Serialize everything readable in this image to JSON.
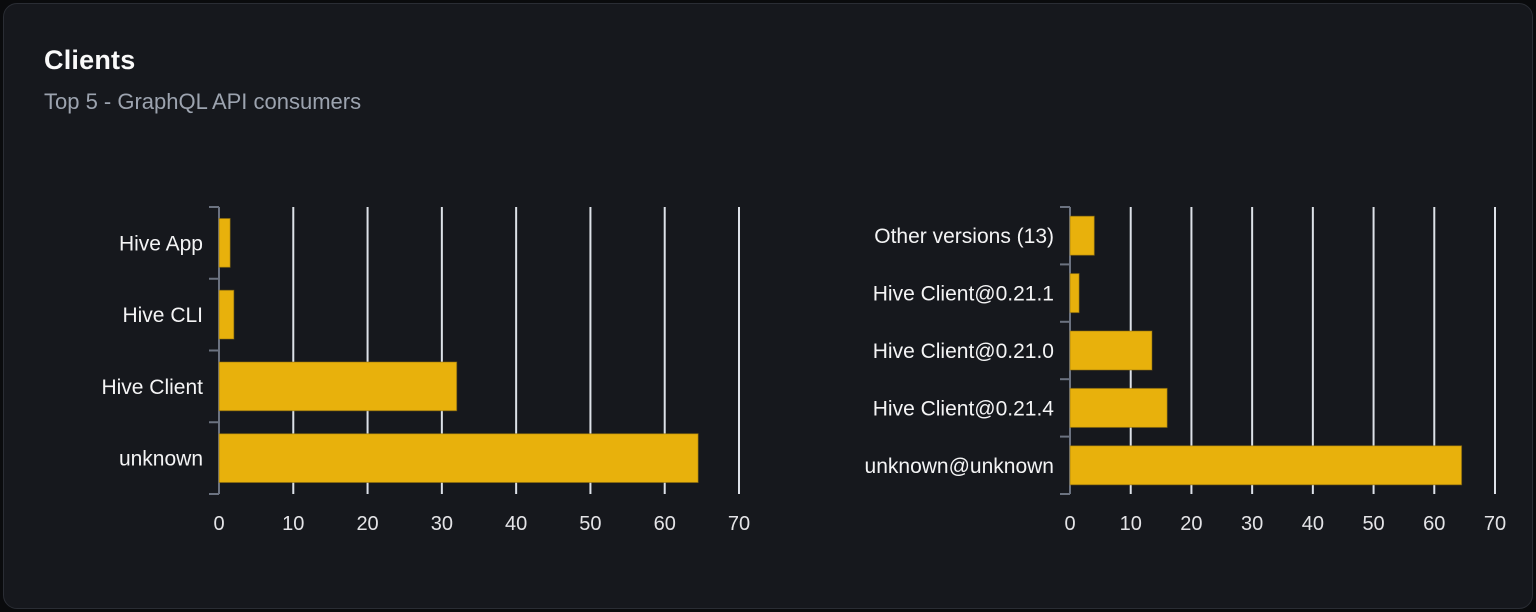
{
  "card": {
    "title": "Clients",
    "subtitle": "Top 5 - GraphQL API consumers"
  },
  "theme": {
    "page_bg": "#0a0b0d",
    "panel_bg": "#16181d",
    "border_color": "#2a2d34",
    "title_color": "#fafafa",
    "subtitle_color": "#9ca3af",
    "bar_color": "#e8b10c",
    "bar_edge_color": "#8a6c10",
    "grid_color": "#dde1e8",
    "axis_color": "#6b7280",
    "label_color": "#f4f4f5",
    "tick_label_color": "#e4e4e7"
  },
  "chart_data": [
    {
      "type": "bar",
      "orientation": "horizontal",
      "name": "clients-by-name",
      "categories": [
        "Hive App",
        "Hive CLI",
        "Hive Client",
        "unknown"
      ],
      "values": [
        1.5,
        2,
        32,
        64.5
      ],
      "xlim": [
        0,
        70
      ],
      "xticks": [
        0,
        10,
        20,
        30,
        40,
        50,
        60,
        70
      ],
      "grid": true,
      "legend_position": "none",
      "xlabel": "",
      "ylabel": ""
    },
    {
      "type": "bar",
      "orientation": "horizontal",
      "name": "clients-by-version",
      "categories": [
        "Other versions (13)",
        "Hive Client@0.21.1",
        "Hive Client@0.21.0",
        "Hive Client@0.21.4",
        "unknown@unknown"
      ],
      "values": [
        4,
        1.5,
        13.5,
        16,
        64.5
      ],
      "xlim": [
        0,
        70
      ],
      "xticks": [
        0,
        10,
        20,
        30,
        40,
        50,
        60,
        70
      ],
      "grid": true,
      "legend_position": "none",
      "xlabel": "",
      "ylabel": ""
    }
  ]
}
